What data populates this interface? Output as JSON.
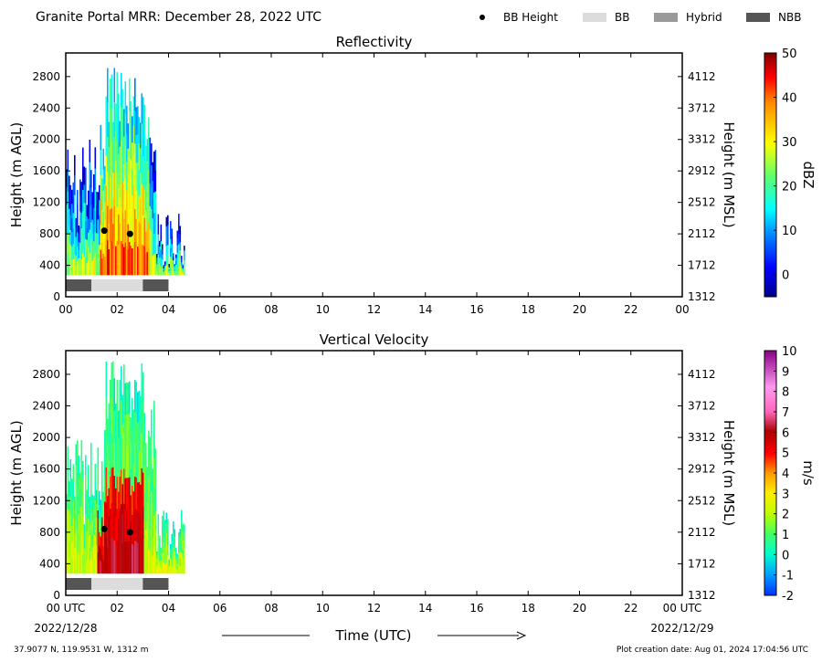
{
  "header": {
    "title": "Granite Portal MRR:  December 28, 2022 UTC"
  },
  "legend": {
    "position": "top-right",
    "items": [
      {
        "label": "BB Height",
        "kind": "dot",
        "color": "#000000"
      },
      {
        "label": "BB",
        "kind": "bar",
        "color": "#dcdcdc"
      },
      {
        "label": "Hybrid",
        "kind": "bar",
        "color": "#9a9a9a"
      },
      {
        "label": "NBB",
        "kind": "bar",
        "color": "#555555"
      }
    ]
  },
  "x_axis": {
    "label": "Time (UTC)",
    "ticks_top": [
      "00",
      "02",
      "04",
      "06",
      "08",
      "10",
      "12",
      "14",
      "16",
      "18",
      "20",
      "22",
      "00"
    ],
    "ticks_bottom": [
      "00 UTC",
      "02",
      "04",
      "06",
      "08",
      "10",
      "12",
      "14",
      "16",
      "18",
      "20",
      "22",
      "00 UTC"
    ],
    "start_date": "2022/12/28",
    "end_date": "2022/12/29"
  },
  "footer": {
    "location": "37.9077 N, 119.9531 W, 1312 m",
    "created": "Plot creation date: Aug 01, 2024 17:04:56 UTC"
  },
  "chart_data": [
    {
      "type": "heatmap",
      "title": "Reflectivity",
      "ylabel": "Height (m AGL)",
      "ylabel_right": "Height (m MSL)",
      "xlim": [
        0,
        24
      ],
      "ylim": [
        0,
        3100
      ],
      "yticks": [
        0,
        400,
        800,
        1200,
        1600,
        2000,
        2400,
        2800
      ],
      "yticks_right": [
        "1312",
        "1712",
        "2112",
        "2512",
        "2912",
        "3312",
        "3712",
        "4112"
      ],
      "colorbar": {
        "label": "dBZ",
        "min": -5,
        "max": 50,
        "ticks": [
          "0",
          "10",
          "20",
          "30",
          "40",
          "50"
        ]
      },
      "data_extent_hours": [
        0,
        4.6
      ],
      "bb_height": [
        {
          "time": 1.5,
          "height": 840
        },
        {
          "time": 2.5,
          "height": 800
        }
      ],
      "bb_type_segments": [
        {
          "start": 0,
          "end": 1,
          "type": "NBB"
        },
        {
          "start": 1,
          "end": 3,
          "type": "BB"
        },
        {
          "start": 3,
          "end": 4,
          "type": "NBB"
        }
      ]
    },
    {
      "type": "heatmap",
      "title": "Vertical Velocity",
      "ylabel": "Height (m AGL)",
      "ylabel_right": "Height (m MSL)",
      "xlim": [
        0,
        24
      ],
      "ylim": [
        0,
        3100
      ],
      "yticks": [
        0,
        400,
        800,
        1200,
        1600,
        2000,
        2400,
        2800
      ],
      "yticks_right": [
        "1312",
        "1712",
        "2112",
        "2512",
        "2912",
        "3312",
        "3712",
        "4112"
      ],
      "colorbar": {
        "label": "m/s",
        "min": -2,
        "max": 10,
        "ticks": [
          "-2",
          "-1",
          "0",
          "1",
          "2",
          "3",
          "4",
          "5",
          "6",
          "7",
          "8",
          "9",
          "10"
        ]
      },
      "data_extent_hours": [
        0,
        4.6
      ],
      "bb_height": [
        {
          "time": 1.5,
          "height": 840
        },
        {
          "time": 2.5,
          "height": 800
        }
      ],
      "bb_type_segments": [
        {
          "start": 0,
          "end": 1,
          "type": "NBB"
        },
        {
          "start": 1,
          "end": 3,
          "type": "BB"
        },
        {
          "start": 3,
          "end": 4,
          "type": "NBB"
        }
      ]
    }
  ]
}
